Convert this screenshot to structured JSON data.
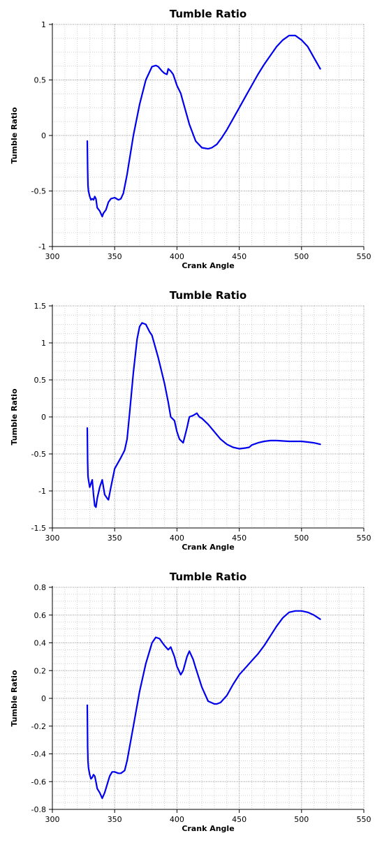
{
  "chart_data": [
    {
      "type": "line",
      "title": "Tumble Ratio",
      "xlabel": "Crank Angle",
      "ylabel": "Tumble Ratio",
      "xlim": [
        300,
        550
      ],
      "ylim": [
        -1,
        1
      ],
      "xticks": [
        300,
        350,
        400,
        450,
        500,
        550
      ],
      "yticks": [
        -1,
        -0.5,
        0,
        0.5,
        1
      ],
      "grid": true,
      "line_color": "#0000ee",
      "series": [
        {
          "x": [
            328,
            328.3,
            328.6,
            329,
            330,
            331,
            332,
            333,
            334,
            335,
            336,
            338,
            340,
            341,
            343,
            345,
            347,
            350,
            353,
            355,
            357,
            360,
            365,
            370,
            375,
            380,
            383,
            385,
            388,
            390,
            392,
            393,
            395,
            397,
            400,
            403,
            405,
            410,
            415,
            420,
            425,
            428,
            432,
            436,
            440,
            445,
            450,
            455,
            460,
            465,
            470,
            475,
            480,
            485,
            490,
            495,
            500,
            505,
            510,
            515
          ],
          "y": [
            -0.05,
            -0.3,
            -0.45,
            -0.5,
            -0.55,
            -0.58,
            -0.57,
            -0.58,
            -0.55,
            -0.57,
            -0.65,
            -0.68,
            -0.73,
            -0.7,
            -0.67,
            -0.6,
            -0.57,
            -0.56,
            -0.58,
            -0.57,
            -0.52,
            -0.35,
            0.0,
            0.28,
            0.5,
            0.62,
            0.63,
            0.62,
            0.58,
            0.56,
            0.55,
            0.6,
            0.58,
            0.55,
            0.45,
            0.38,
            0.3,
            0.1,
            -0.05,
            -0.11,
            -0.12,
            -0.11,
            -0.08,
            -0.02,
            0.05,
            0.15,
            0.25,
            0.35,
            0.45,
            0.55,
            0.64,
            0.72,
            0.8,
            0.86,
            0.9,
            0.9,
            0.86,
            0.8,
            0.7,
            0.6
          ]
        }
      ]
    },
    {
      "type": "line",
      "title": "Tumble Ratio",
      "xlabel": "Crank Angle",
      "ylabel": "Tumble Ratio",
      "xlim": [
        300,
        550
      ],
      "ylim": [
        -1.5,
        1.5
      ],
      "xticks": [
        300,
        350,
        400,
        450,
        500,
        550
      ],
      "yticks": [
        -1.5,
        -1,
        -0.5,
        0,
        0.5,
        1,
        1.5
      ],
      "grid": true,
      "line_color": "#0000ee",
      "series": [
        {
          "x": [
            328,
            328.3,
            328.6,
            329,
            330,
            331,
            332,
            333,
            334,
            335,
            336,
            338,
            340,
            342,
            344,
            345,
            347,
            350,
            355,
            358,
            360,
            362,
            365,
            368,
            370,
            372,
            375,
            378,
            380,
            385,
            390,
            393,
            395,
            398,
            400,
            402,
            405,
            408,
            410,
            413,
            416,
            418,
            420,
            425,
            430,
            435,
            440,
            445,
            450,
            455,
            458,
            460,
            465,
            470,
            475,
            480,
            490,
            500,
            505,
            510,
            515
          ],
          "y": [
            -0.15,
            -0.6,
            -0.8,
            -0.85,
            -0.95,
            -0.9,
            -0.85,
            -1.05,
            -1.2,
            -1.22,
            -1.1,
            -0.95,
            -0.85,
            -1.05,
            -1.1,
            -1.12,
            -0.95,
            -0.7,
            -0.55,
            -0.45,
            -0.3,
            0.05,
            0.6,
            1.05,
            1.22,
            1.27,
            1.25,
            1.15,
            1.1,
            0.8,
            0.45,
            0.2,
            0.0,
            -0.05,
            -0.2,
            -0.3,
            -0.35,
            -0.15,
            0.0,
            0.02,
            0.05,
            0.0,
            -0.02,
            -0.1,
            -0.2,
            -0.3,
            -0.37,
            -0.41,
            -0.43,
            -0.42,
            -0.41,
            -0.38,
            -0.35,
            -0.33,
            -0.32,
            -0.32,
            -0.33,
            -0.33,
            -0.34,
            -0.35,
            -0.37
          ]
        }
      ]
    },
    {
      "type": "line",
      "title": "Tumble Ratio",
      "xlabel": "Crank Angle",
      "ylabel": "Tumble Ratio",
      "xlim": [
        300,
        550
      ],
      "ylim": [
        -0.8,
        0.8
      ],
      "xticks": [
        300,
        350,
        400,
        450,
        500,
        550
      ],
      "yticks": [
        -0.8,
        -0.6,
        -0.4,
        -0.2,
        0,
        0.2,
        0.4,
        0.6,
        0.8
      ],
      "grid": true,
      "line_color": "#0000ee",
      "series": [
        {
          "x": [
            328,
            328.3,
            328.6,
            329,
            330,
            331,
            332,
            333,
            334,
            335,
            336,
            338,
            340,
            342,
            344,
            346,
            348,
            350,
            353,
            355,
            358,
            360,
            365,
            370,
            375,
            380,
            383,
            386,
            390,
            393,
            395,
            398,
            400,
            403,
            405,
            408,
            410,
            413,
            415,
            420,
            425,
            430,
            432,
            435,
            440,
            445,
            450,
            455,
            460,
            465,
            470,
            475,
            480,
            485,
            490,
            495,
            500,
            505,
            510,
            515
          ],
          "y": [
            -0.05,
            -0.35,
            -0.45,
            -0.5,
            -0.55,
            -0.58,
            -0.57,
            -0.55,
            -0.56,
            -0.6,
            -0.65,
            -0.68,
            -0.72,
            -0.68,
            -0.62,
            -0.56,
            -0.53,
            -0.53,
            -0.54,
            -0.54,
            -0.52,
            -0.45,
            -0.2,
            0.05,
            0.25,
            0.4,
            0.44,
            0.43,
            0.38,
            0.35,
            0.37,
            0.3,
            0.23,
            0.17,
            0.2,
            0.3,
            0.34,
            0.28,
            0.22,
            0.08,
            -0.02,
            -0.04,
            -0.04,
            -0.03,
            0.02,
            0.1,
            0.17,
            0.22,
            0.27,
            0.32,
            0.38,
            0.45,
            0.52,
            0.58,
            0.62,
            0.63,
            0.63,
            0.62,
            0.6,
            0.57
          ]
        }
      ]
    }
  ]
}
